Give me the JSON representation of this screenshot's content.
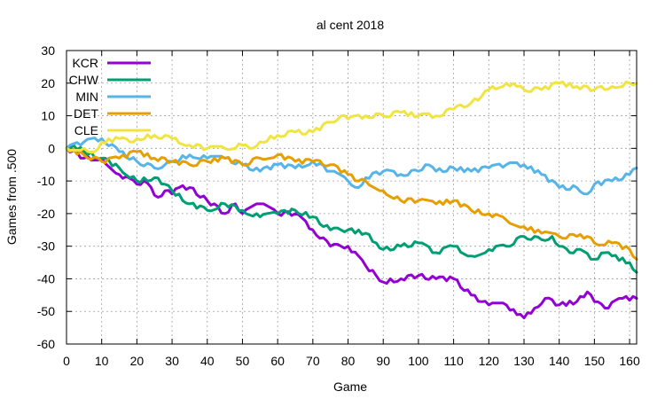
{
  "chart_data": {
    "type": "line",
    "title": "al cent 2018",
    "xlabel": "Game",
    "ylabel": "Games from .500",
    "xlim": [
      0,
      162
    ],
    "ylim": [
      -60,
      30
    ],
    "xticks": [
      0,
      10,
      20,
      30,
      40,
      50,
      60,
      70,
      80,
      90,
      100,
      110,
      120,
      130,
      140,
      150,
      160
    ],
    "yticks": [
      -60,
      -50,
      -40,
      -30,
      -20,
      -10,
      0,
      10,
      20,
      30
    ],
    "grid": true,
    "legend_position": "top-left",
    "series": [
      {
        "name": "KCR",
        "color": "#9400d3",
        "points": [
          [
            0,
            0
          ],
          [
            5,
            -3
          ],
          [
            10,
            -3
          ],
          [
            15,
            -8
          ],
          [
            20,
            -11
          ],
          [
            22,
            -10
          ],
          [
            26,
            -15
          ],
          [
            28,
            -13
          ],
          [
            30,
            -14
          ],
          [
            32,
            -12
          ],
          [
            35,
            -12
          ],
          [
            40,
            -16
          ],
          [
            45,
            -20
          ],
          [
            48,
            -17
          ],
          [
            50,
            -20
          ],
          [
            55,
            -17
          ],
          [
            60,
            -20
          ],
          [
            65,
            -20
          ],
          [
            70,
            -25
          ],
          [
            75,
            -30
          ],
          [
            78,
            -30
          ],
          [
            80,
            -30
          ],
          [
            85,
            -36
          ],
          [
            88,
            -39
          ],
          [
            90,
            -41
          ],
          [
            95,
            -40
          ],
          [
            100,
            -39
          ],
          [
            105,
            -40
          ],
          [
            110,
            -40
          ],
          [
            115,
            -45
          ],
          [
            118,
            -47
          ],
          [
            120,
            -48
          ],
          [
            125,
            -48
          ],
          [
            128,
            -51
          ],
          [
            130,
            -52
          ],
          [
            133,
            -49
          ],
          [
            136,
            -46
          ],
          [
            140,
            -48
          ],
          [
            145,
            -47
          ],
          [
            148,
            -44
          ],
          [
            150,
            -47
          ],
          [
            153,
            -49
          ],
          [
            158,
            -46
          ],
          [
            162,
            -46
          ]
        ]
      },
      {
        "name": "CHW",
        "color": "#009e73",
        "points": [
          [
            0,
            0
          ],
          [
            2,
            1
          ],
          [
            5,
            -1
          ],
          [
            10,
            -3
          ],
          [
            15,
            -6
          ],
          [
            20,
            -10
          ],
          [
            25,
            -9
          ],
          [
            28,
            -11
          ],
          [
            30,
            -13
          ],
          [
            35,
            -17
          ],
          [
            40,
            -19
          ],
          [
            45,
            -17
          ],
          [
            50,
            -19
          ],
          [
            55,
            -21
          ],
          [
            60,
            -20
          ],
          [
            65,
            -19
          ],
          [
            70,
            -21
          ],
          [
            75,
            -25
          ],
          [
            78,
            -25
          ],
          [
            80,
            -25
          ],
          [
            85,
            -26
          ],
          [
            88,
            -29
          ],
          [
            90,
            -31
          ],
          [
            95,
            -30
          ],
          [
            100,
            -29
          ],
          [
            105,
            -32
          ],
          [
            110,
            -30
          ],
          [
            115,
            -33
          ],
          [
            120,
            -31
          ],
          [
            125,
            -30
          ],
          [
            130,
            -27
          ],
          [
            135,
            -28
          ],
          [
            138,
            -27
          ],
          [
            140,
            -30
          ],
          [
            143,
            -32
          ],
          [
            145,
            -31
          ],
          [
            150,
            -34
          ],
          [
            153,
            -32
          ],
          [
            155,
            -33
          ],
          [
            160,
            -35
          ],
          [
            162,
            -38
          ]
        ]
      },
      {
        "name": "MIN",
        "color": "#56b4e9",
        "points": [
          [
            0,
            0
          ],
          [
            5,
            2
          ],
          [
            10,
            3
          ],
          [
            15,
            -1
          ],
          [
            20,
            -4
          ],
          [
            25,
            -6
          ],
          [
            28,
            -5
          ],
          [
            30,
            -4
          ],
          [
            35,
            -2
          ],
          [
            40,
            -3
          ],
          [
            45,
            -3
          ],
          [
            50,
            -5
          ],
          [
            55,
            -7
          ],
          [
            60,
            -5
          ],
          [
            65,
            -6
          ],
          [
            70,
            -4
          ],
          [
            75,
            -7
          ],
          [
            80,
            -10
          ],
          [
            83,
            -12
          ],
          [
            85,
            -9
          ],
          [
            90,
            -7
          ],
          [
            95,
            -8
          ],
          [
            100,
            -7
          ],
          [
            102,
            -5
          ],
          [
            105,
            -7
          ],
          [
            110,
            -6
          ],
          [
            115,
            -7
          ],
          [
            120,
            -6
          ],
          [
            125,
            -5
          ],
          [
            130,
            -5
          ],
          [
            135,
            -8
          ],
          [
            140,
            -12
          ],
          [
            145,
            -12
          ],
          [
            148,
            -14
          ],
          [
            150,
            -11
          ],
          [
            155,
            -10
          ],
          [
            160,
            -8
          ],
          [
            162,
            -6
          ]
        ]
      },
      {
        "name": "DET",
        "color": "#e69f00",
        "points": [
          [
            0,
            0
          ],
          [
            5,
            -2
          ],
          [
            10,
            -4
          ],
          [
            15,
            -3
          ],
          [
            20,
            -1
          ],
          [
            25,
            -3
          ],
          [
            30,
            -4
          ],
          [
            35,
            -5
          ],
          [
            40,
            -4
          ],
          [
            45,
            -3
          ],
          [
            50,
            -5
          ],
          [
            55,
            -3
          ],
          [
            60,
            -2
          ],
          [
            65,
            -4
          ],
          [
            70,
            -4
          ],
          [
            75,
            -5
          ],
          [
            80,
            -8
          ],
          [
            83,
            -10
          ],
          [
            85,
            -10
          ],
          [
            90,
            -13
          ],
          [
            95,
            -16
          ],
          [
            100,
            -16
          ],
          [
            105,
            -17
          ],
          [
            110,
            -16
          ],
          [
            115,
            -19
          ],
          [
            120,
            -20
          ],
          [
            125,
            -22
          ],
          [
            130,
            -24
          ],
          [
            135,
            -26
          ],
          [
            140,
            -27
          ],
          [
            145,
            -27
          ],
          [
            148,
            -27
          ],
          [
            150,
            -29
          ],
          [
            155,
            -29
          ],
          [
            160,
            -31
          ],
          [
            162,
            -34
          ]
        ]
      },
      {
        "name": "CLE",
        "color": "#f0e442",
        "points": [
          [
            0,
            0
          ],
          [
            5,
            0
          ],
          [
            8,
            -1
          ],
          [
            10,
            2
          ],
          [
            15,
            3
          ],
          [
            18,
            2
          ],
          [
            20,
            3
          ],
          [
            25,
            4
          ],
          [
            30,
            3
          ],
          [
            35,
            1
          ],
          [
            40,
            0
          ],
          [
            45,
            0
          ],
          [
            50,
            1
          ],
          [
            52,
            0
          ],
          [
            55,
            2
          ],
          [
            60,
            4
          ],
          [
            65,
            5
          ],
          [
            70,
            5
          ],
          [
            75,
            8
          ],
          [
            78,
            10
          ],
          [
            80,
            9
          ],
          [
            85,
            10
          ],
          [
            90,
            10
          ],
          [
            95,
            11
          ],
          [
            100,
            10
          ],
          [
            105,
            10
          ],
          [
            110,
            12
          ],
          [
            115,
            14
          ],
          [
            118,
            16
          ],
          [
            120,
            18
          ],
          [
            125,
            20
          ],
          [
            128,
            19
          ],
          [
            130,
            18
          ],
          [
            135,
            18
          ],
          [
            140,
            20
          ],
          [
            145,
            19
          ],
          [
            150,
            18
          ],
          [
            155,
            19
          ],
          [
            160,
            20
          ],
          [
            162,
            20
          ]
        ]
      }
    ]
  }
}
